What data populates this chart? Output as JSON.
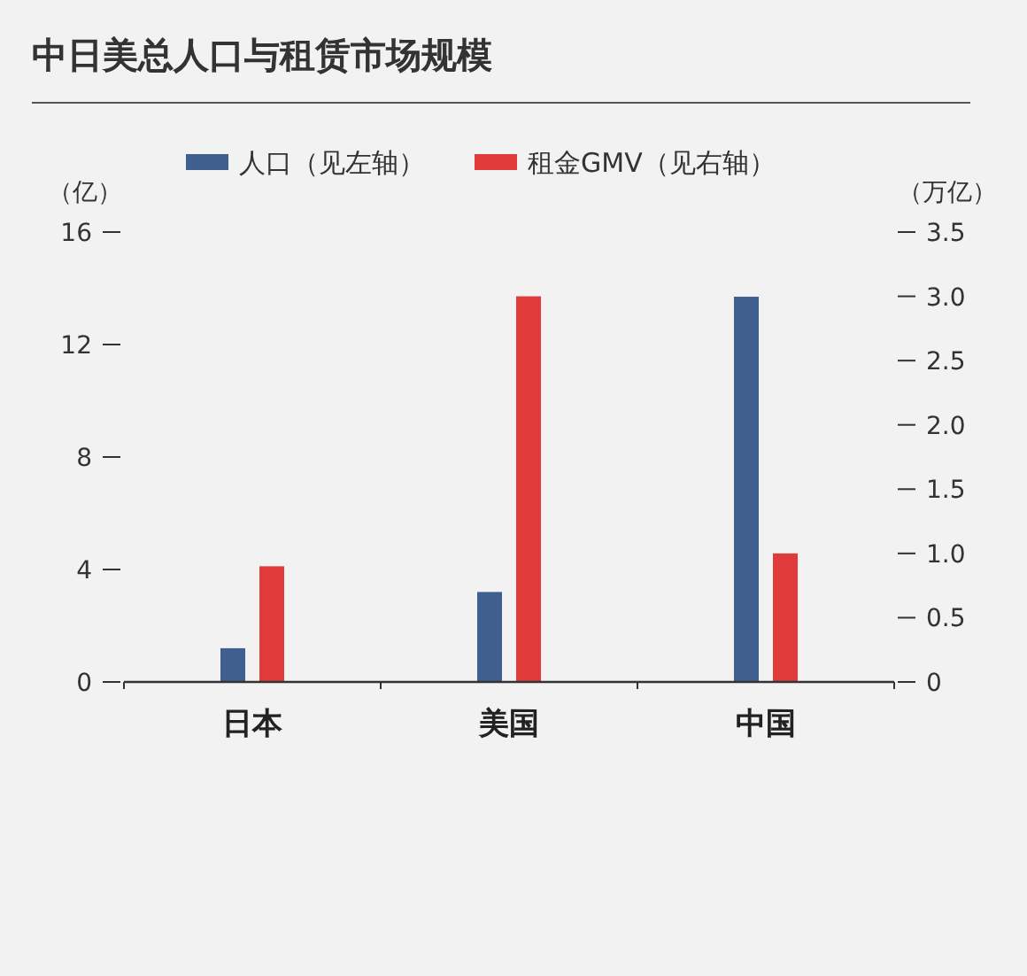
{
  "chart_data": {
    "type": "bar",
    "title": "中日美总人口与租赁市场规模",
    "categories": [
      "日本",
      "美国",
      "中国"
    ],
    "series": [
      {
        "name": "人口（见左轴）",
        "color": "#3f5f8f",
        "values": [
          1.2,
          3.2,
          13.7
        ]
      },
      {
        "name": "租金GMV（见右轴）",
        "color": "#e03a3a",
        "values": [
          0.9,
          3.0,
          1.0
        ],
        "axis": "y2"
      }
    ],
    "ylabel": "（亿）",
    "y2label": "（万亿）",
    "ylim": [
      0,
      16
    ],
    "yticks": [
      0,
      4,
      8,
      12,
      16
    ],
    "y2lim": [
      0,
      3.5
    ],
    "y2ticks": [
      0,
      0.5,
      {
        "value": 1,
        "label": "1.0"
      },
      1.5,
      {
        "value": 2,
        "label": "2.0"
      },
      2.5,
      {
        "value": 3,
        "label": "3.0"
      },
      3.5
    ],
    "legend": "top"
  }
}
